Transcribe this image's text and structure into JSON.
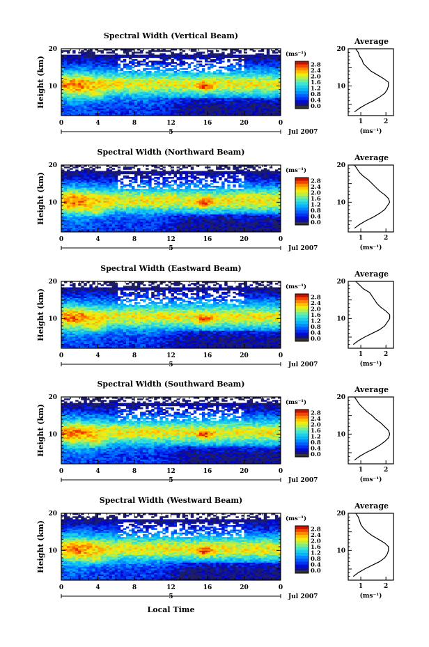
{
  "figure": {
    "x_axis_label": "Local Time",
    "date_label": "Jul 2007",
    "day_label": "5"
  },
  "chart_data": [
    {
      "type": "heatmap",
      "title": "Spectral Width (Vertical Beam)",
      "xlabel": "",
      "ylabel": "Height (km)",
      "xlim": [
        0,
        24
      ],
      "ylim": [
        2,
        20
      ],
      "x_ticks": [
        "0",
        "4",
        "8",
        "12",
        "16",
        "20",
        "0"
      ],
      "y_ticks": [
        "20",
        "10"
      ],
      "colorbar": {
        "unit": "(ms⁻¹)",
        "ticks": [
          "2.8",
          "2.4",
          "2.0",
          "1.6",
          "1.2",
          "0.8",
          "0.4",
          "0.0"
        ],
        "range": [
          0,
          3.0
        ]
      },
      "average_panel": {
        "title": "Average",
        "xlabel": "(ms⁻¹)",
        "x_ticks": [
          "1",
          "2"
        ],
        "xlim": [
          0.5,
          2.3
        ],
        "y_ticks": [
          "20",
          "10"
        ],
        "profile": {
          "height": [
            3,
            4,
            5,
            6,
            7,
            8,
            9,
            10,
            11,
            12,
            13,
            14,
            15,
            16,
            17,
            18,
            19,
            20
          ],
          "width": [
            0.75,
            0.95,
            1.2,
            1.5,
            1.75,
            1.95,
            2.05,
            2.1,
            2.1,
            1.9,
            1.65,
            1.4,
            1.25,
            1.1,
            1.05,
            0.95,
            0.9,
            0.8
          ]
        }
      }
    },
    {
      "type": "heatmap",
      "title": "Spectral Width (Northward Beam)",
      "xlabel": "",
      "ylabel": "Height (km)",
      "xlim": [
        0,
        24
      ],
      "ylim": [
        2,
        20
      ],
      "x_ticks": [
        "0",
        "4",
        "8",
        "12",
        "16",
        "20",
        "0"
      ],
      "y_ticks": [
        "20",
        "10"
      ],
      "colorbar": {
        "unit": "(ms⁻¹)",
        "ticks": [
          "2.8",
          "2.4",
          "2.0",
          "1.6",
          "1.2",
          "0.8",
          "0.4",
          "0.0"
        ],
        "range": [
          0,
          3.0
        ]
      },
      "average_panel": {
        "title": "Average",
        "xlabel": "(ms⁻¹)",
        "x_ticks": [
          "1",
          "2"
        ],
        "xlim": [
          0.5,
          2.3
        ],
        "y_ticks": [
          "20",
          "10"
        ],
        "profile": {
          "height": [
            3,
            4,
            5,
            6,
            7,
            8,
            9,
            10,
            11,
            12,
            13,
            14,
            15,
            16,
            17,
            18,
            19,
            20
          ],
          "width": [
            0.75,
            0.95,
            1.2,
            1.5,
            1.75,
            1.95,
            2.05,
            2.15,
            2.1,
            1.95,
            1.75,
            1.6,
            1.45,
            1.3,
            1.1,
            0.95,
            0.85,
            0.75
          ]
        }
      }
    },
    {
      "type": "heatmap",
      "title": "Spectral Width (Eastward Beam)",
      "xlabel": "",
      "ylabel": "Height (km)",
      "xlim": [
        0,
        24
      ],
      "ylim": [
        2,
        20
      ],
      "x_ticks": [
        "0",
        "4",
        "8",
        "12",
        "16",
        "20",
        "0"
      ],
      "y_ticks": [
        "20",
        "10"
      ],
      "colorbar": {
        "unit": "(ms⁻¹)",
        "ticks": [
          "2.8",
          "2.4",
          "2.0",
          "1.6",
          "1.2",
          "0.8",
          "0.4",
          "0.0"
        ],
        "range": [
          0,
          3.0
        ]
      },
      "average_panel": {
        "title": "Average",
        "xlabel": "(ms⁻¹)",
        "x_ticks": [
          "1",
          "2"
        ],
        "xlim": [
          0.5,
          2.3
        ],
        "y_ticks": [
          "20",
          "10"
        ],
        "profile": {
          "height": [
            3,
            4,
            5,
            6,
            7,
            8,
            9,
            10,
            11,
            12,
            13,
            14,
            15,
            16,
            17,
            18,
            19,
            20
          ],
          "width": [
            0.7,
            0.9,
            1.15,
            1.45,
            1.75,
            1.95,
            2.05,
            2.15,
            2.15,
            2.0,
            1.8,
            1.65,
            1.55,
            1.45,
            1.35,
            1.1,
            0.95,
            0.8
          ]
        }
      }
    },
    {
      "type": "heatmap",
      "title": "Spectral Width (Southward Beam)",
      "xlabel": "",
      "ylabel": "Height (km)",
      "xlim": [
        0,
        24
      ],
      "ylim": [
        2,
        20
      ],
      "x_ticks": [
        "0",
        "4",
        "8",
        "12",
        "16",
        "20",
        "0"
      ],
      "y_ticks": [
        "20",
        "10"
      ],
      "colorbar": {
        "unit": "(ms⁻¹)",
        "ticks": [
          "2.8",
          "2.4",
          "2.0",
          "1.6",
          "1.2",
          "0.8",
          "0.4",
          "0.0"
        ],
        "range": [
          0,
          3.0
        ]
      },
      "average_panel": {
        "title": "Average",
        "xlabel": "(ms⁻¹)",
        "x_ticks": [
          "1",
          "2"
        ],
        "xlim": [
          0.5,
          2.3
        ],
        "y_ticks": [
          "20",
          "10"
        ],
        "profile": {
          "height": [
            3,
            4,
            5,
            6,
            7,
            8,
            9,
            10,
            11,
            12,
            13,
            14,
            15,
            16,
            17,
            18,
            19,
            20
          ],
          "width": [
            0.75,
            0.95,
            1.2,
            1.5,
            1.75,
            1.95,
            2.1,
            2.15,
            2.1,
            1.95,
            1.8,
            1.6,
            1.45,
            1.25,
            1.1,
            0.95,
            0.85,
            0.75
          ]
        }
      }
    },
    {
      "type": "heatmap",
      "title": "Spectral Width (Westward Beam)",
      "xlabel": "Local Time",
      "ylabel": "Height (km)",
      "xlim": [
        0,
        24
      ],
      "ylim": [
        2,
        20
      ],
      "x_ticks": [
        "0",
        "4",
        "8",
        "12",
        "16",
        "20",
        "0"
      ],
      "y_ticks": [
        "20",
        "10"
      ],
      "colorbar": {
        "unit": "(ms⁻¹)",
        "ticks": [
          "2.8",
          "2.4",
          "2.0",
          "1.6",
          "1.2",
          "0.8",
          "0.4",
          "0.0"
        ],
        "range": [
          0,
          3.0
        ]
      },
      "average_panel": {
        "title": "Average",
        "xlabel": "(ms⁻¹)",
        "x_ticks": [
          "1",
          "2"
        ],
        "xlim": [
          0.5,
          2.3
        ],
        "y_ticks": [
          "20",
          "10"
        ],
        "profile": {
          "height": [
            3,
            4,
            5,
            6,
            7,
            8,
            9,
            10,
            11,
            12,
            13,
            14,
            15,
            16,
            17,
            18,
            19,
            20
          ],
          "width": [
            0.7,
            0.9,
            1.15,
            1.45,
            1.75,
            1.95,
            2.05,
            2.1,
            2.1,
            1.95,
            1.7,
            1.45,
            1.25,
            1.1,
            1.0,
            0.95,
            0.9,
            0.8
          ]
        }
      }
    }
  ]
}
